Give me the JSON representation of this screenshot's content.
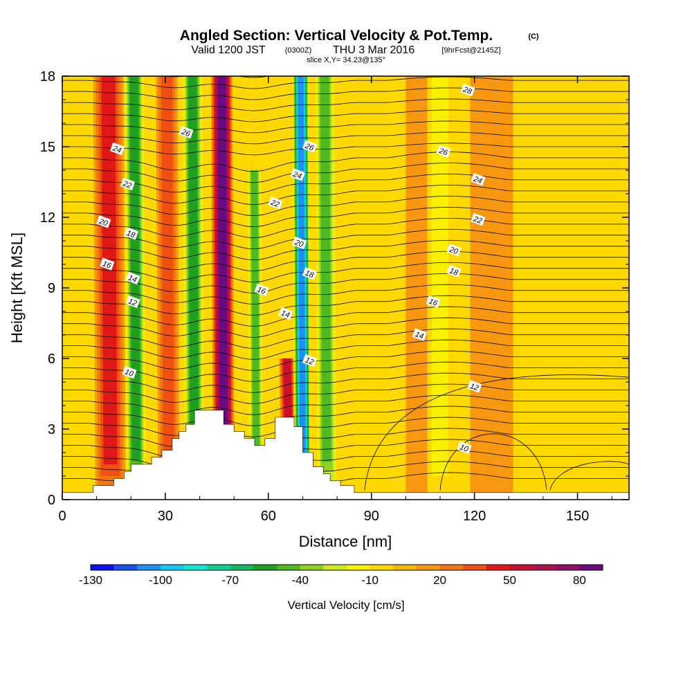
{
  "header": {
    "title": "Angled Section: Vertical Velocity & Pot.Temp.",
    "title_mark": "(C)",
    "valid_prefix": "Valid 1200 JST",
    "valid_zulu": "(0300Z)",
    "valid_date": "THU 3 Mar 2016",
    "forecast": "[9hrFcst@2145Z]",
    "slice": "slice X,Y= 34.23@135°"
  },
  "chart_data": {
    "type": "heatmap",
    "xlabel": "Distance [nm]",
    "ylabel": "Height [Kft MSL]",
    "xlim": [
      0,
      165
    ],
    "ylim": [
      0,
      18
    ],
    "x_ticks": [
      "0",
      "30",
      "60",
      "90",
      "120",
      "150"
    ],
    "y_ticks": [
      "0",
      "3",
      "6",
      "9",
      "12",
      "15",
      "18"
    ],
    "shaded_field": "Vertical Velocity [cm/s]",
    "contour_field": "Potential temperature (C)",
    "colorbar": {
      "label": "Vertical Velocity [cm/s]",
      "range": [
        -130,
        90
      ],
      "step": 10,
      "tick_labels": [
        "-130",
        "-100",
        "-70",
        "-40",
        "-10",
        "20",
        "50",
        "80"
      ],
      "colors": [
        "#1010ee",
        "#1e50f0",
        "#1e90f0",
        "#10c8f0",
        "#10e8d0",
        "#10d090",
        "#10b860",
        "#20a020",
        "#50b820",
        "#90d020",
        "#d0e820",
        "#f8f000",
        "#ffd800",
        "#f8b800",
        "#f89810",
        "#f07810",
        "#f05010",
        "#e01818",
        "#c81030",
        "#b01050",
        "#901068",
        "#6a0a80"
      ]
    },
    "updraft_bands": [
      {
        "x": 14,
        "w": 3.5,
        "top": 18,
        "peak": 42
      },
      {
        "x": 31,
        "w": 2.5,
        "top": 18,
        "peak": 38
      },
      {
        "x": 47,
        "w": 2.5,
        "top": 18,
        "peak": 85
      },
      {
        "x": 66,
        "w": 1.8,
        "top": 6,
        "peak": 55
      },
      {
        "x": 105,
        "w": 4,
        "top": 18,
        "peak": 15
      },
      {
        "x": 125,
        "w": 5,
        "top": 18,
        "peak": 12
      }
    ],
    "downdraft_bands": [
      {
        "x": 21.5,
        "w": 2.5,
        "top": 18,
        "peak": -62
      },
      {
        "x": 38.5,
        "w": 2.5,
        "top": 18,
        "peak": -62
      },
      {
        "x": 56.5,
        "w": 1.8,
        "top": 14,
        "peak": -55
      },
      {
        "x": 70,
        "w": 2,
        "top": 18,
        "peak": -118
      },
      {
        "x": 77,
        "w": 2.5,
        "top": 18,
        "peak": -50
      },
      {
        "x": 110,
        "w": 3,
        "top": 18,
        "peak": -28
      }
    ],
    "terrain_kft": [
      {
        "x": 0,
        "h": 0.3
      },
      {
        "x": 9,
        "h": 0.6
      },
      {
        "x": 15,
        "h": 0.9
      },
      {
        "x": 18,
        "h": 1.2
      },
      {
        "x": 20,
        "h": 1.5
      },
      {
        "x": 26,
        "h": 1.8
      },
      {
        "x": 29,
        "h": 2.1
      },
      {
        "x": 32,
        "h": 2.6
      },
      {
        "x": 34,
        "h": 2.9
      },
      {
        "x": 36,
        "h": 3.2
      },
      {
        "x": 38.5,
        "h": 3.8
      },
      {
        "x": 47,
        "h": 3.2
      },
      {
        "x": 50,
        "h": 2.9
      },
      {
        "x": 53,
        "h": 2.6
      },
      {
        "x": 56,
        "h": 2.3
      },
      {
        "x": 59,
        "h": 2.6
      },
      {
        "x": 62,
        "h": 3.5
      },
      {
        "x": 67.5,
        "h": 3.1
      },
      {
        "x": 70,
        "h": 2.0
      },
      {
        "x": 73,
        "h": 1.4
      },
      {
        "x": 76,
        "h": 1.1
      },
      {
        "x": 78,
        "h": 0.8
      },
      {
        "x": 81,
        "h": 0.6
      },
      {
        "x": 85,
        "h": 0.3
      },
      {
        "x": 165,
        "h": 0.3
      }
    ],
    "contour_labels": [
      {
        "t": "28",
        "x": 118,
        "y": 17.4
      },
      {
        "t": "26",
        "x": 36,
        "y": 15.6
      },
      {
        "t": "26",
        "x": 72,
        "y": 15.0
      },
      {
        "t": "26",
        "x": 111,
        "y": 14.8
      },
      {
        "t": "24",
        "x": 16,
        "y": 14.9
      },
      {
        "t": "24",
        "x": 68.5,
        "y": 13.8
      },
      {
        "t": "24",
        "x": 121,
        "y": 13.6
      },
      {
        "t": "22",
        "x": 19,
        "y": 13.4
      },
      {
        "t": "22",
        "x": 62,
        "y": 12.6
      },
      {
        "t": "22",
        "x": 121,
        "y": 11.9
      },
      {
        "t": "20",
        "x": 12,
        "y": 11.8
      },
      {
        "t": "20",
        "x": 69,
        "y": 10.9
      },
      {
        "t": "20",
        "x": 114,
        "y": 10.6
      },
      {
        "t": "18",
        "x": 20,
        "y": 11.3
      },
      {
        "t": "18",
        "x": 72,
        "y": 9.6
      },
      {
        "t": "18",
        "x": 114,
        "y": 9.7
      },
      {
        "t": "16",
        "x": 13,
        "y": 10.0
      },
      {
        "t": "16",
        "x": 58,
        "y": 8.9
      },
      {
        "t": "16",
        "x": 108,
        "y": 8.4
      },
      {
        "t": "14",
        "x": 20.5,
        "y": 9.4
      },
      {
        "t": "14",
        "x": 65,
        "y": 7.9
      },
      {
        "t": "14",
        "x": 104,
        "y": 7.0
      },
      {
        "t": "12",
        "x": 20.5,
        "y": 8.4
      },
      {
        "t": "12",
        "x": 72,
        "y": 5.9
      },
      {
        "t": "12",
        "x": 120,
        "y": 4.8
      },
      {
        "t": "10",
        "x": 19.5,
        "y": 5.4
      },
      {
        "t": "10",
        "x": 117,
        "y": 2.2
      }
    ]
  }
}
